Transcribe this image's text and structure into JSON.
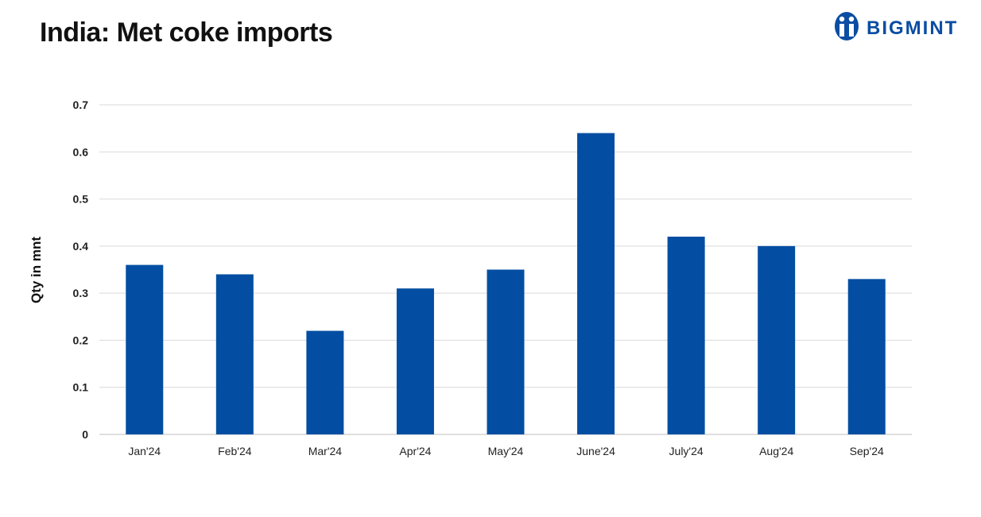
{
  "header": {
    "title": "India: Met coke imports",
    "brand": "BIGMINT"
  },
  "colors": {
    "bar": "#034ea2",
    "grid": "#d9d9d9",
    "brand": "#0a4da2"
  },
  "chart_data": {
    "type": "bar",
    "title": "India: Met coke imports",
    "xlabel": "",
    "ylabel": "Qty in mnt",
    "categories": [
      "Jan'24",
      "Feb'24",
      "Mar'24",
      "Apr'24",
      "May'24",
      "June'24",
      "July'24",
      "Aug'24",
      "Sep'24"
    ],
    "values": [
      0.36,
      0.34,
      0.22,
      0.31,
      0.35,
      0.64,
      0.42,
      0.4,
      0.33
    ],
    "ylim": [
      0,
      0.7
    ],
    "yticks": [
      "0",
      "0.1",
      "0.2",
      "0.3",
      "0.4",
      "0.5",
      "0.6",
      "0.7"
    ],
    "grid": true,
    "legend": "none"
  }
}
